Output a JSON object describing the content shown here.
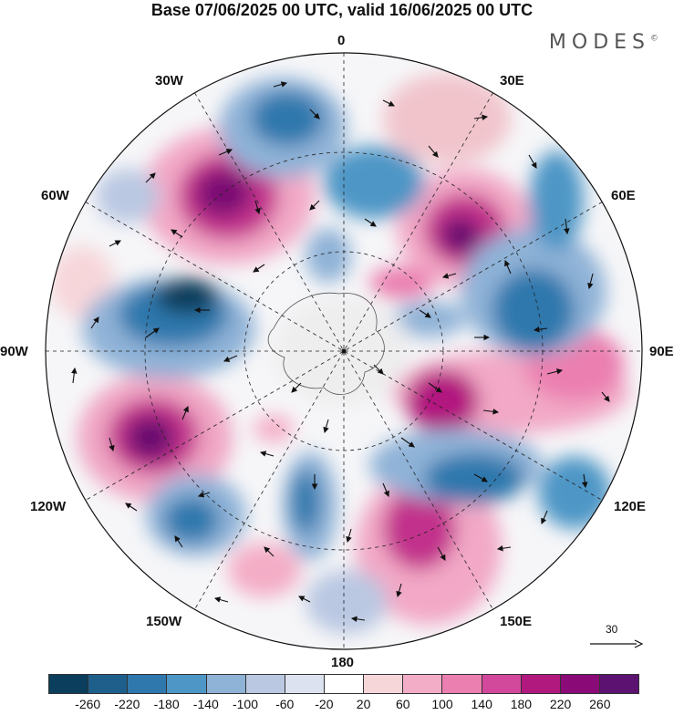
{
  "header": {
    "title": "Base 07/06/2025 00 UTC, valid 16/06/2025 00 UTC",
    "brand": "MODES",
    "brand_mark": "©"
  },
  "map": {
    "projection": "south-polar-stereographic",
    "longitude_labels": {
      "top": "0",
      "top_right": "30E",
      "right_upper": "60E",
      "right": "90E",
      "right_lower": "120E",
      "bottom_right": "150E",
      "bottom": "180",
      "bottom_left": "150W",
      "left_lower": "120W",
      "left": "90W",
      "left_upper": "60W",
      "top_left": "30W"
    },
    "reference_vector": "30"
  },
  "colorbar": {
    "colors": [
      "#0b3d5c",
      "#1e5f8c",
      "#2f78ad",
      "#4e96c6",
      "#8fb2d7",
      "#bac8e2",
      "#dde2f0",
      "#ffffff",
      "#f7d6da",
      "#f4adc6",
      "#eb7fb0",
      "#d2489a",
      "#b2197f",
      "#8a0b77",
      "#5b1271"
    ],
    "ticks": [
      "-260",
      "-220",
      "-180",
      "-140",
      "-100",
      "-60",
      "-20",
      "20",
      "60",
      "100",
      "140",
      "180",
      "220",
      "260"
    ]
  }
}
